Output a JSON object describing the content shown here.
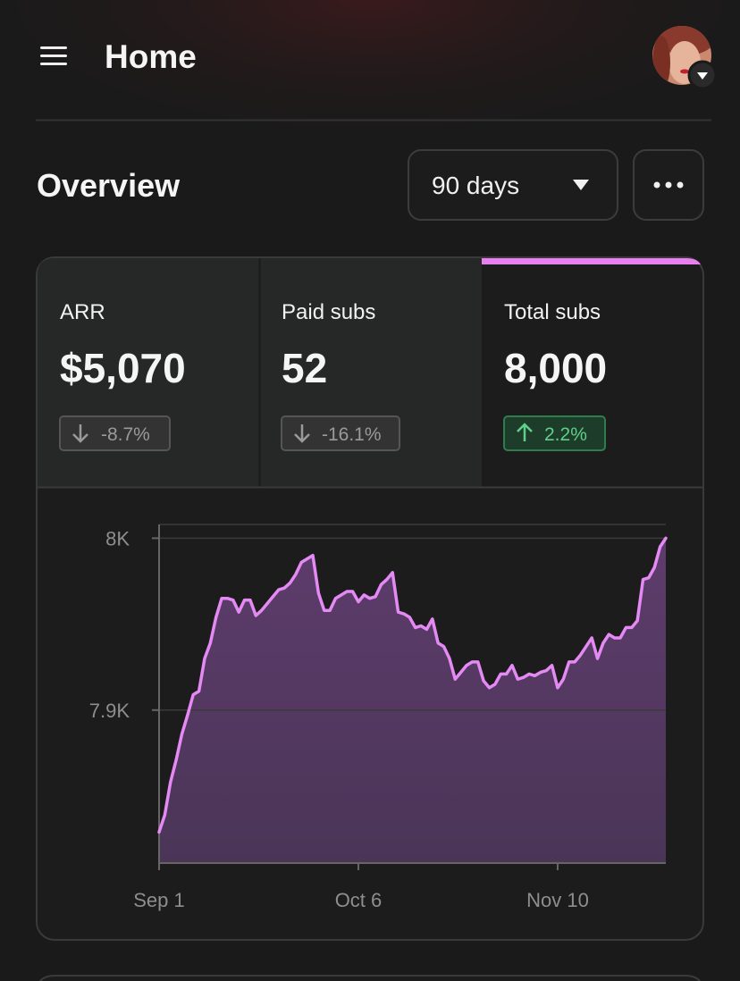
{
  "header": {
    "title": "Home"
  },
  "overview": {
    "title": "Overview",
    "range": "90 days"
  },
  "stats": [
    {
      "label": "ARR",
      "value": "$5,070",
      "change": "-8.7%"
    },
    {
      "label": "Paid subs",
      "value": "52",
      "change": "-16.1%"
    },
    {
      "label": "Total subs",
      "value": "8,000",
      "change": "2.2%"
    }
  ],
  "chart_data": {
    "type": "area",
    "color": "#e58af5",
    "x": [
      0,
      1,
      2,
      3,
      4,
      5,
      6,
      7,
      8,
      9,
      10,
      11,
      12,
      13,
      14,
      15,
      16,
      17,
      18,
      19,
      20,
      21,
      22,
      23,
      24,
      25,
      26,
      27,
      28,
      29,
      30,
      31,
      32,
      33,
      34,
      35,
      36,
      37,
      38,
      39,
      40,
      41,
      42,
      43,
      44,
      45,
      46,
      47,
      48,
      49,
      50,
      51,
      52,
      53,
      54,
      55,
      56,
      57,
      58,
      59,
      60,
      61,
      62,
      63,
      64,
      65,
      66,
      67,
      68,
      69,
      70,
      71,
      72,
      73,
      74,
      75,
      76,
      77,
      78,
      79,
      80,
      81,
      82,
      83,
      84,
      85,
      86,
      87,
      88,
      89
    ],
    "values": [
      7829,
      7839,
      7858,
      7871,
      7886,
      7897,
      7909,
      7911,
      7930,
      7939,
      7954,
      7965,
      7965,
      7964,
      7957,
      7964,
      7964,
      7955,
      7958,
      7962,
      7966,
      7970,
      7971,
      7974,
      7979,
      7986,
      7988,
      7990,
      7968,
      7958,
      7958,
      7965,
      7967,
      7969,
      7969,
      7963,
      7967,
      7965,
      7966,
      7973,
      7976,
      7980,
      7957,
      7956,
      7954,
      7948,
      7949,
      7947,
      7953,
      7939,
      7937,
      7930,
      7918,
      7922,
      7926,
      7928,
      7928,
      7917,
      7913,
      7915,
      7921,
      7921,
      7926,
      7918,
      7919,
      7921,
      7920,
      7922,
      7923,
      7926,
      7913,
      7918,
      7928,
      7928,
      7932,
      7937,
      7942,
      7930,
      7939,
      7944,
      7942,
      7942,
      7948,
      7948,
      7952,
      7976,
      7977,
      7983,
      7995,
      8000
    ],
    "xlim": [
      0,
      89
    ],
    "xticks": [
      {
        "value": 0,
        "label": "Sep 1"
      },
      {
        "value": 35,
        "label": "Oct 6"
      },
      {
        "value": 70,
        "label": "Nov 10"
      }
    ],
    "ylim": [
      7811,
      8008
    ],
    "yticks": [
      {
        "value": 7900,
        "label": "7.9K"
      },
      {
        "value": 8000,
        "label": "8K"
      }
    ],
    "grid": true
  }
}
